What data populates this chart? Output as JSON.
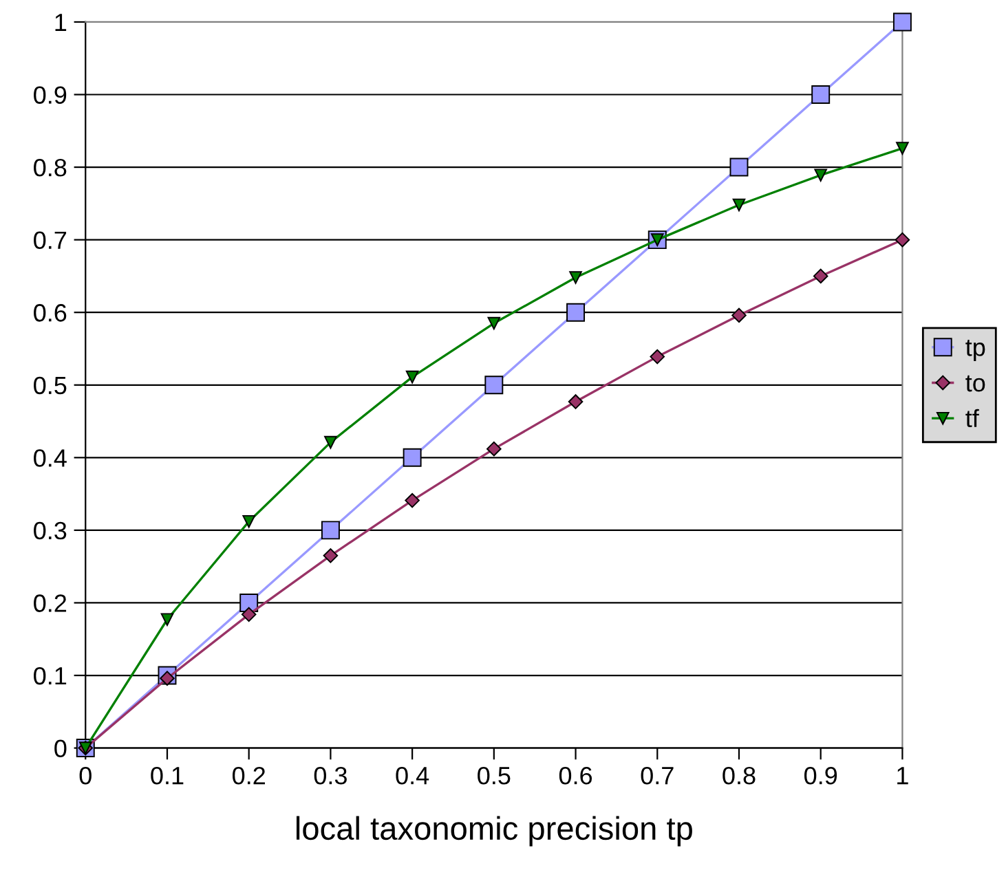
{
  "chart_data": {
    "type": "line",
    "xlabel": "local taxonomic precision tp",
    "x": [
      0,
      0.1,
      0.2,
      0.3,
      0.4,
      0.5,
      0.6,
      0.7,
      0.8,
      0.9,
      1
    ],
    "series": [
      {
        "name": "tp",
        "color": "#9999ff",
        "marker": "square",
        "values": [
          0,
          0.1,
          0.2,
          0.3,
          0.4,
          0.5,
          0.6,
          0.7,
          0.8,
          0.9,
          1
        ]
      },
      {
        "name": "to",
        "color": "#993366",
        "marker": "diamond",
        "values": [
          0,
          0.096,
          0.184,
          0.265,
          0.341,
          0.412,
          0.477,
          0.539,
          0.596,
          0.65,
          0.7
        ]
      },
      {
        "name": "tf",
        "color": "#008000",
        "marker": "triangle",
        "values": [
          0,
          0.177,
          0.312,
          0.421,
          0.511,
          0.585,
          0.648,
          0.7,
          0.748,
          0.789,
          0.826
        ]
      }
    ],
    "xlim": [
      0,
      1
    ],
    "xticks": [
      0,
      0.1,
      0.2,
      0.3,
      0.4,
      0.5,
      0.6,
      0.7,
      0.8,
      0.9,
      1
    ],
    "ylim": [
      0,
      1
    ],
    "yticks": [
      0,
      0.1,
      0.2,
      0.3,
      0.4,
      0.5,
      0.6,
      0.7,
      0.8,
      0.9,
      1
    ],
    "grid": "y",
    "legend": "right",
    "line_style": "solid"
  }
}
